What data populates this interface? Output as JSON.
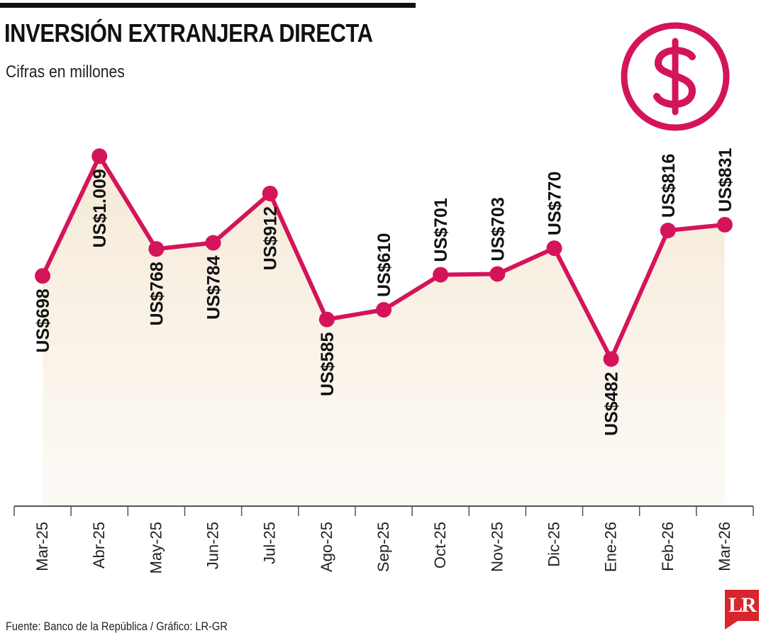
{
  "header": {
    "title": "INVERSIÓN EXTRANJERA DIRECTA",
    "subtitle": "Cifras en millones"
  },
  "icon": {
    "name": "dollar-circle-icon"
  },
  "footer": {
    "source": "Fuente: Banco de la República / Gráfico: LR-GR",
    "logo_text": "LR"
  },
  "colors": {
    "line": "#d4145a",
    "area_top": "#f5ead8",
    "area_bottom": "#fdfaf6",
    "axis": "#555555",
    "logo": "#d9252b"
  },
  "chart_data": {
    "type": "line",
    "title": "INVERSIÓN EXTRANJERA DIRECTA",
    "subtitle": "Cifras en millones",
    "categories": [
      "Mar-25",
      "Abr-25",
      "May-25",
      "Jun-25",
      "Jul-25",
      "Ago-25",
      "Sep-25",
      "Oct-25",
      "Nov-25",
      "Dic-25",
      "Ene-26",
      "Feb-26",
      "Mar-26"
    ],
    "values": [
      698,
      1009,
      768,
      784,
      912,
      585,
      610,
      701,
      703,
      770,
      482,
      816,
      831
    ],
    "data_labels": [
      "US$698",
      "US$1.009",
      "US$768",
      "US$784",
      "US$912",
      "US$585",
      "US$610",
      "US$701",
      "US$703",
      "US$770",
      "US$482",
      "US$816",
      "US$831"
    ],
    "label_position": [
      "below",
      "below",
      "below",
      "below",
      "below",
      "below",
      "above",
      "above",
      "above",
      "above",
      "below",
      "above",
      "above"
    ],
    "ylim": [
      100,
      1120
    ],
    "grid": false,
    "area_fill": true,
    "xlabel": "",
    "ylabel": ""
  }
}
